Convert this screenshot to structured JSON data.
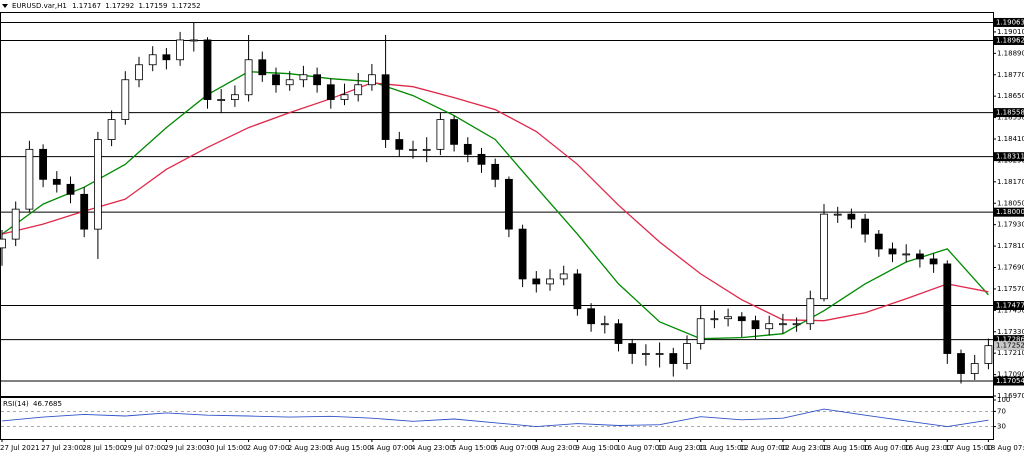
{
  "header": {
    "symbol": "EURUSD.var,H1",
    "open": 1.17167,
    "high": 1.17292,
    "low": 1.17159,
    "close": 1.17252
  },
  "chart_data": [
    {
      "type": "candlestick",
      "categories": [
        "27 Jul 2021",
        null,
        null,
        "27 Jul 23:00",
        null,
        null,
        "28 Jul 15:00",
        null,
        null,
        "29 Jul 07:00",
        null,
        null,
        "29 Jul 23:00",
        null,
        null,
        "30 Jul 15:00",
        null,
        null,
        "2 Aug 07:00",
        null,
        null,
        "2 Aug 23:00",
        null,
        null,
        "3 Aug 15:00",
        null,
        null,
        "4 Aug 07:00",
        null,
        null,
        "4 Aug 23:00",
        null,
        null,
        "5 Aug 15:00",
        null,
        null,
        "6 Aug 07:00",
        null,
        null,
        "8 Aug 23:00",
        null,
        null,
        "9 Aug 15:00",
        null,
        null,
        "10 Aug 07:00",
        null,
        null,
        "10 Aug 23:00",
        null,
        null,
        "11 Aug 15:00",
        null,
        null,
        "12 Aug 07:00",
        null,
        null,
        "12 Aug 23:00",
        null,
        null,
        "13 Aug 15:00",
        null,
        null,
        "16 Aug 07:00",
        null,
        null,
        "16 Aug 23:00",
        null,
        null,
        "17 Aug 15:00",
        null,
        null,
        "18 Aug 07:00"
      ],
      "open": [
        1.178,
        1.17849,
        1.18017,
        1.18352,
        1.18184,
        1.18156,
        1.181,
        1.17905,
        1.18407,
        1.18519,
        1.18742,
        1.18826,
        1.18882,
        1.18854,
        1.18965,
        1.18965,
        1.18631,
        1.18631,
        1.18658,
        1.18854,
        1.1877,
        1.18714,
        1.18742,
        1.1877,
        1.18714,
        1.18631,
        1.18658,
        1.18714,
        1.1877,
        1.18407,
        1.18352,
        1.18352,
        1.18352,
        1.18519,
        1.1838,
        1.18324,
        1.18268,
        1.18184,
        1.17905,
        1.17626,
        1.17598,
        1.17626,
        1.17654,
        1.17459,
        1.17375,
        1.17375,
        1.17264,
        1.17208,
        1.17208,
        1.17208,
        1.17152,
        1.17264,
        1.17403,
        1.17403,
        1.17414,
        1.17392,
        1.17347,
        1.17375,
        1.17375,
        1.17375,
        1.17515,
        1.17989,
        1.17989,
        1.17961,
        1.17877,
        1.17794,
        1.17766,
        1.17766,
        1.17738,
        1.1771,
        1.17208,
        1.17096,
        1.17152
      ],
      "high": [
        1.179,
        1.1806,
        1.184,
        1.1838,
        1.1823,
        1.182,
        1.1814,
        1.1845,
        1.1857,
        1.1879,
        1.1887,
        1.1893,
        1.1892,
        1.1901,
        1.19063,
        1.1898,
        1.1869,
        1.1871,
        1.18993,
        1.189,
        1.1881,
        1.1879,
        1.1882,
        1.1881,
        1.1875,
        1.1872,
        1.1878,
        1.1883,
        1.18993,
        1.1845,
        1.184,
        1.1842,
        1.18558,
        1.1854,
        1.1842,
        1.1836,
        1.183,
        1.182,
        1.1793,
        1.1767,
        1.1768,
        1.177,
        1.1768,
        1.1749,
        1.1742,
        1.174,
        1.1729,
        1.1726,
        1.1727,
        1.1724,
        1.1731,
        1.17477,
        1.1745,
        1.1746,
        1.1744,
        1.1742,
        1.1742,
        1.1743,
        1.1741,
        1.1756,
        1.18045,
        1.1803,
        1.1802,
        1.1799,
        1.179,
        1.1783,
        1.1782,
        1.1779,
        1.1777,
        1.1773,
        1.1723,
        1.172,
        1.17292
      ],
      "low": [
        1.177,
        1.1781,
        1.18,
        1.1814,
        1.1811,
        1.1805,
        1.1786,
        1.17738,
        1.1837,
        1.1849,
        1.187,
        1.1879,
        1.188,
        1.1882,
        1.189,
        1.1858,
        1.18558,
        1.1859,
        1.1862,
        1.1873,
        1.1867,
        1.1868,
        1.187,
        1.1867,
        1.1858,
        1.186,
        1.1862,
        1.1868,
        1.1836,
        1.18311,
        1.183,
        1.1828,
        1.1832,
        1.1834,
        1.1828,
        1.1822,
        1.1814,
        1.1786,
        1.1758,
        1.1755,
        1.1756,
        1.1759,
        1.1742,
        1.1733,
        1.1732,
        1.1722,
        1.1715,
        1.1714,
        1.1713,
        1.17079,
        1.1712,
        1.1723,
        1.1735,
        1.1736,
        1.173,
        1.1729,
        1.1731,
        1.1732,
        1.1733,
        1.1734,
        1.175,
        1.1794,
        1.1791,
        1.1783,
        1.1775,
        1.1772,
        1.1772,
        1.1769,
        1.1766,
        1.1715,
        1.1704,
        1.1706,
        1.1712
      ],
      "close": [
        1.17849,
        1.18017,
        1.18352,
        1.18184,
        1.18156,
        1.181,
        1.17905,
        1.18407,
        1.18519,
        1.18742,
        1.18826,
        1.18882,
        1.18854,
        1.18965,
        1.18965,
        1.18631,
        1.18631,
        1.18658,
        1.18854,
        1.1877,
        1.18714,
        1.18742,
        1.1877,
        1.18714,
        1.18631,
        1.18658,
        1.18714,
        1.1877,
        1.18407,
        1.18352,
        1.18352,
        1.18352,
        1.18519,
        1.1838,
        1.18324,
        1.18268,
        1.18184,
        1.17905,
        1.17626,
        1.17598,
        1.17626,
        1.17654,
        1.17459,
        1.17375,
        1.17375,
        1.17264,
        1.17208,
        1.17208,
        1.17208,
        1.17152,
        1.17264,
        1.17403,
        1.17403,
        1.17414,
        1.17392,
        1.17347,
        1.17375,
        1.17375,
        1.17375,
        1.17515,
        1.17989,
        1.17989,
        1.17961,
        1.17877,
        1.17794,
        1.17766,
        1.17766,
        1.17738,
        1.1771,
        1.17208,
        1.17096,
        1.17152,
        1.17252
      ],
      "ylim": [
        1.1697,
        1.19116
      ],
      "yticks": [
        {
          "value": 1.1901,
          "label": "1.19010"
        },
        {
          "value": 1.1889,
          "label": "1.18890"
        },
        {
          "value": 1.1877,
          "label": "1.18770"
        },
        {
          "value": 1.1865,
          "label": "1.18650"
        },
        {
          "value": 1.1853,
          "label": "1.18530"
        },
        {
          "value": 1.1841,
          "label": "1.18410"
        },
        {
          "value": 1.1829,
          "label": "1.18290"
        },
        {
          "value": 1.1817,
          "label": "1.18170"
        },
        {
          "value": 1.1805,
          "label": "1.18050"
        },
        {
          "value": 1.1793,
          "label": "1.17930"
        },
        {
          "value": 1.1781,
          "label": "1.17810"
        },
        {
          "value": 1.1769,
          "label": "1.17690"
        },
        {
          "value": 1.1757,
          "label": "1.17570"
        },
        {
          "value": 1.1745,
          "label": "1.17450"
        },
        {
          "value": 1.1733,
          "label": "1.17330"
        },
        {
          "value": 1.1721,
          "label": "1.17210"
        },
        {
          "value": 1.1709,
          "label": "1.17090"
        },
        {
          "value": 1.1697,
          "label": "1.16970"
        }
      ],
      "levels": [
        1.19063,
        1.18962,
        1.18558,
        1.18311,
        {
          "value": 1.18,
          "label": "1.18000"
        },
        1.17477,
        1.17286,
        1.17054
      ],
      "overlays": [
        {
          "color": "#008a00",
          "x": [
            0,
            3,
            6,
            9,
            12,
            15,
            18,
            21,
            24,
            27,
            30,
            33,
            36,
            39,
            42,
            45,
            48,
            51,
            54,
            57,
            60,
            63,
            66,
            69,
            72
          ],
          "values": [
            1.17877,
            1.18045,
            1.1814,
            1.18268,
            1.18474,
            1.18658,
            1.18787,
            1.18776,
            1.18748,
            1.18731,
            1.18653,
            1.18541,
            1.18407,
            1.1814,
            1.17877,
            1.17598,
            1.17386,
            1.17291,
            1.17297,
            1.17319,
            1.17448,
            1.17598,
            1.17721,
            1.17794,
            1.17537
          ]
        },
        {
          "color": "#e0284a",
          "x": [
            0,
            3,
            6,
            9,
            12,
            15,
            18,
            21,
            24,
            27,
            30,
            33,
            36,
            39,
            42,
            45,
            48,
            51,
            54,
            57,
            60,
            63,
            66,
            69,
            72
          ],
          "values": [
            1.17877,
            1.17933,
            1.18006,
            1.18073,
            1.1824,
            1.18363,
            1.18474,
            1.18558,
            1.18636,
            1.18725,
            1.18703,
            1.18642,
            1.18575,
            1.18452,
            1.18268,
            1.18039,
            1.17833,
            1.17654,
            1.17509,
            1.17397,
            1.17392,
            1.17436,
            1.17515,
            1.17598,
            1.17554
          ]
        }
      ]
    },
    {
      "type": "line",
      "label": "RSI(14)",
      "color": "#2f52c8",
      "x": [
        0,
        3,
        6,
        9,
        12,
        15,
        18,
        21,
        24,
        27,
        30,
        33,
        36,
        39,
        42,
        45,
        48,
        51,
        54,
        57,
        60,
        63,
        66,
        69,
        72
      ],
      "values": [
        45,
        55,
        62,
        58,
        66,
        60,
        58,
        55,
        57,
        52,
        44,
        50,
        40,
        30,
        38,
        33,
        35,
        56,
        48,
        52,
        76,
        60,
        45,
        30,
        46.7685
      ],
      "ylim": [
        0,
        100
      ],
      "yticks": [
        100,
        70,
        30
      ],
      "grid": "dashed"
    }
  ]
}
